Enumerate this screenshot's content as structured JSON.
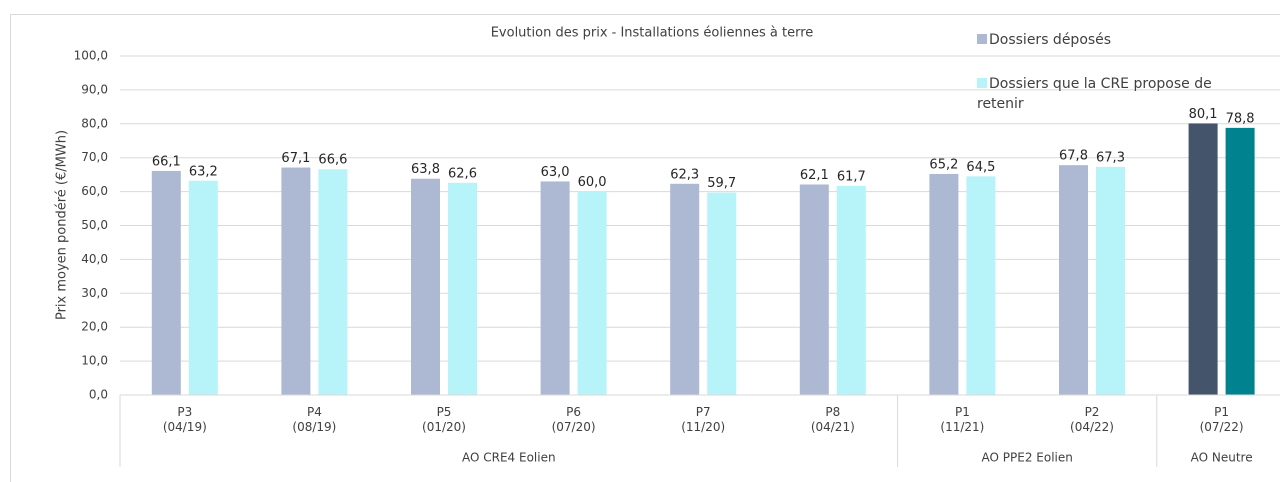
{
  "chart_data": {
    "type": "bar",
    "title": "Evolution des prix - Installations éoliennes à terre",
    "y_label": "Prix moyen pondéré (€/MWh)",
    "categories": [
      "P3\n(04/19)",
      "P4\n(08/19)",
      "P5\n(01/20)",
      "P6\n(07/20)",
      "P7\n(11/20)",
      "P8\n(04/21)",
      "P1\n(11/21)",
      "P2\n(04/22)",
      "P1\n(07/22)"
    ],
    "groups": [
      {
        "label": "AO CRE4 Eolien",
        "size": 6
      },
      {
        "label": "AO PPE2 Eolien",
        "size": 2
      },
      {
        "label": "AO Neutre",
        "size": 1
      }
    ],
    "series": [
      {
        "name": "Dossiers déposés",
        "color": "#adb9d3",
        "colors": [
          "#adb9d3",
          "#adb9d3",
          "#adb9d3",
          "#adb9d3",
          "#adb9d3",
          "#adb9d3",
          "#adb9d3",
          "#adb9d3",
          "#44546a"
        ],
        "values": [
          66.1,
          67.1,
          63.8,
          63.0,
          62.3,
          62.1,
          65.2,
          67.8,
          80.1
        ],
        "value_labels": [
          "66,1",
          "67,1",
          "63,8",
          "63,0",
          "62,3",
          "62,1",
          "65,2",
          "67,8",
          "80,1"
        ]
      },
      {
        "name": "Dossiers que la CRE propose de retenir",
        "color": "#b7f4fa",
        "colors": [
          "#b7f4fa",
          "#b7f4fa",
          "#b7f4fa",
          "#b7f4fa",
          "#b7f4fa",
          "#b7f4fa",
          "#b7f4fa",
          "#b7f4fa",
          "#00838f"
        ],
        "values": [
          63.2,
          66.6,
          62.6,
          60.0,
          59.7,
          61.7,
          64.5,
          67.3,
          78.8
        ],
        "value_labels": [
          "63,2",
          "66,6",
          "62,6",
          "60,0",
          "59,7",
          "61,7",
          "64,5",
          "67,3",
          "78,8"
        ]
      }
    ],
    "ylim": [
      0,
      100
    ],
    "yticks": [
      {
        "value": 0,
        "label": "0,0"
      },
      {
        "value": 10,
        "label": "10,0"
      },
      {
        "value": 20,
        "label": "20,0"
      },
      {
        "value": 30,
        "label": "30,0"
      },
      {
        "value": 40,
        "label": "40,0"
      },
      {
        "value": 50,
        "label": "50,0"
      },
      {
        "value": 60,
        "label": "60,0"
      },
      {
        "value": 70,
        "label": "70,0"
      },
      {
        "value": 80,
        "label": "80,0"
      },
      {
        "value": 90,
        "label": "90,0"
      },
      {
        "value": 100,
        "label": "100,0"
      }
    ],
    "grid": true
  }
}
